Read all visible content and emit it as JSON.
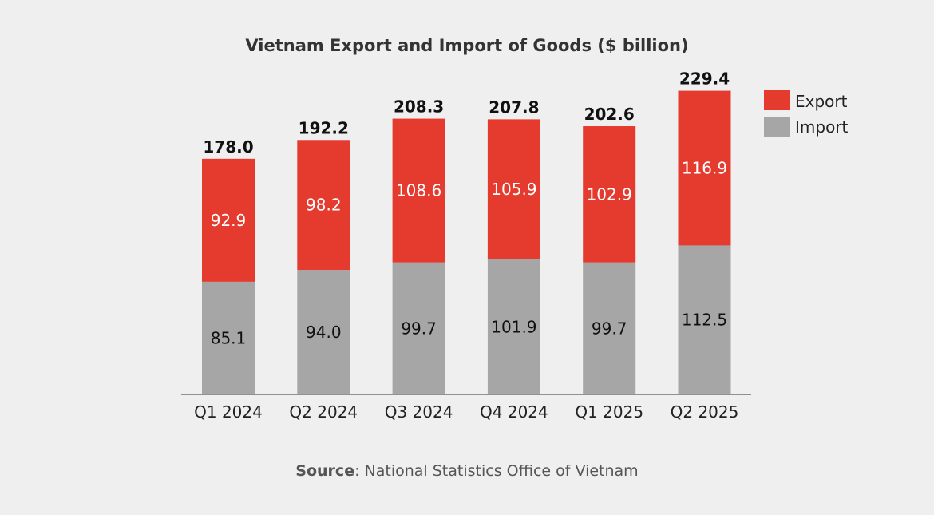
{
  "chart_data": {
    "type": "bar",
    "stacked": true,
    "title": "Vietnam Export and Import of Goods ($ billion)",
    "xlabel": "",
    "ylabel": "",
    "ylim": [
      0,
      240
    ],
    "grid": false,
    "legend_position": "right",
    "categories": [
      "Q1 2024",
      "Q2 2024",
      "Q3 2024",
      "Q4 2024",
      "Q1 2025",
      "Q2 2025"
    ],
    "series": [
      {
        "name": "Import",
        "color": "#a6a6a6",
        "label_color": "#111111",
        "values": [
          85.1,
          94.0,
          99.7,
          101.9,
          99.7,
          112.5
        ]
      },
      {
        "name": "Export",
        "color": "#e53b2f",
        "label_color": "#ffffff",
        "values": [
          92.9,
          98.2,
          108.6,
          105.9,
          102.9,
          116.9
        ]
      }
    ],
    "totals": [
      "178.0",
      "192.2",
      "208.3",
      "207.8",
      "202.6",
      "229.4"
    ],
    "source_label": "Source",
    "source_text": ": National Statistics Office of Vietnam"
  }
}
